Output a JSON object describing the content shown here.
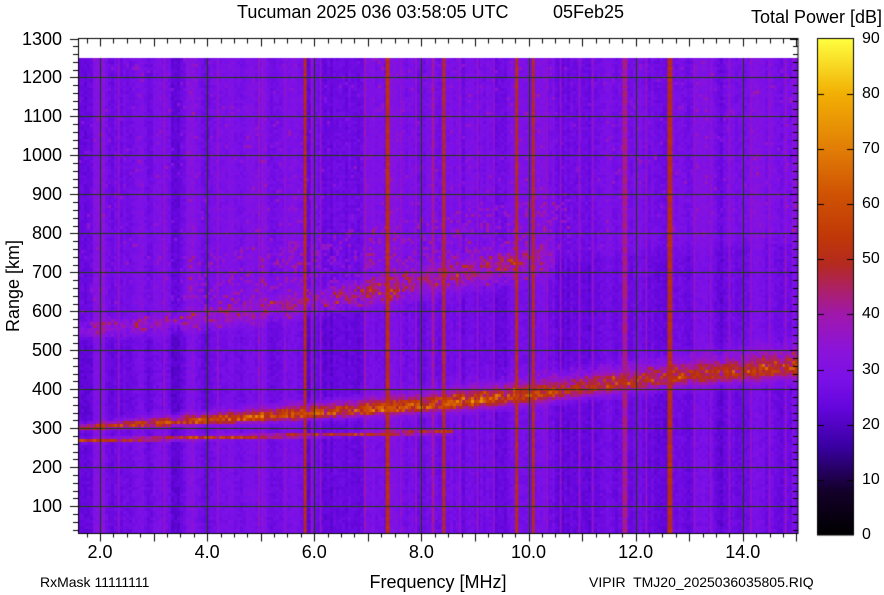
{
  "header": {
    "title": "Tucuman 2025 036 03:58:05 UTC",
    "date": "05Feb25",
    "colorbar_title": "Total Power [dB]"
  },
  "footer": {
    "rx_mask": "RxMask 11111111",
    "xlabel": "Frequency [MHz]",
    "file_id": "VIPIR  TMJ20_2025036035805.RIQ"
  },
  "ylabel": "Range [km]",
  "colors": {
    "background": "#ffffff",
    "text": "#000000",
    "grid": "#1e3c0a",
    "frame": "#000000"
  },
  "chart_data": {
    "type": "heatmap",
    "title": "Tucuman 2025 036 03:58:05 UTC  05Feb25",
    "xlabel": "Frequency [MHz]",
    "ylabel": "Range [km]",
    "zlabel": "Total Power [dB]",
    "x_range": [
      1.59,
      15.03
    ],
    "y_range": [
      30,
      1300
    ],
    "z_range": [
      0,
      90
    ],
    "data_top_km": 1250,
    "grid": true,
    "x_ticks": [
      {
        "value": 2,
        "label": "2.0"
      },
      {
        "value": 4,
        "label": "4.0"
      },
      {
        "value": 6,
        "label": "6.0"
      },
      {
        "value": 8,
        "label": "8.0"
      },
      {
        "value": 10,
        "label": "10.0"
      },
      {
        "value": 12,
        "label": "12.0"
      },
      {
        "value": 14,
        "label": "14.0"
      }
    ],
    "y_ticks": [
      {
        "value": 100,
        "label": "100"
      },
      {
        "value": 200,
        "label": "200"
      },
      {
        "value": 300,
        "label": "300"
      },
      {
        "value": 400,
        "label": "400"
      },
      {
        "value": 500,
        "label": "500"
      },
      {
        "value": 600,
        "label": "600"
      },
      {
        "value": 700,
        "label": "700"
      },
      {
        "value": 800,
        "label": "800"
      },
      {
        "value": 900,
        "label": "900"
      },
      {
        "value": 1000,
        "label": "1000"
      },
      {
        "value": 1100,
        "label": "1100"
      },
      {
        "value": 1200,
        "label": "1200"
      },
      {
        "value": 1300,
        "label": "1300"
      }
    ],
    "z_ticks": [
      {
        "value": 0,
        "label": "0"
      },
      {
        "value": 10,
        "label": "10"
      },
      {
        "value": 20,
        "label": "20"
      },
      {
        "value": 30,
        "label": "30"
      },
      {
        "value": 40,
        "label": "40"
      },
      {
        "value": 50,
        "label": "50"
      },
      {
        "value": 60,
        "label": "60"
      },
      {
        "value": 70,
        "label": "70"
      },
      {
        "value": 80,
        "label": "80"
      },
      {
        "value": 90,
        "label": "90"
      }
    ],
    "x_minor_step_mhz": 0.25,
    "y_minor_step_km": 20,
    "background_db": 27,
    "palette": [
      [
        0,
        "#000000"
      ],
      [
        8,
        "#14002a"
      ],
      [
        16,
        "#3a00a2"
      ],
      [
        23,
        "#6406dc"
      ],
      [
        28,
        "#7a10e8"
      ],
      [
        34,
        "#8d14d8"
      ],
      [
        40,
        "#a018ac"
      ],
      [
        45,
        "#ae2260"
      ],
      [
        49,
        "#b42a20"
      ],
      [
        54,
        "#c03808"
      ],
      [
        62,
        "#d05404"
      ],
      [
        70,
        "#e27e06"
      ],
      [
        80,
        "#f2b004"
      ],
      [
        90,
        "#ffff40"
      ]
    ],
    "echo_traces": {
      "f_region_main": {
        "points": [
          [
            1.59,
            299
          ],
          [
            3,
            310
          ],
          [
            5,
            327
          ],
          [
            7,
            345
          ],
          [
            8,
            355
          ],
          [
            9,
            366
          ],
          [
            10,
            380
          ],
          [
            11,
            398
          ],
          [
            12,
            417
          ],
          [
            13,
            430
          ],
          [
            14,
            441
          ],
          [
            15.03,
            452
          ]
        ],
        "peak_db": [
          [
            1.59,
            49
          ],
          [
            2.4,
            55
          ],
          [
            3,
            58
          ],
          [
            5.5,
            61
          ],
          [
            9,
            61
          ],
          [
            9.8,
            56
          ],
          [
            11,
            53
          ],
          [
            13,
            52
          ],
          [
            15.03,
            52
          ]
        ],
        "half_width_km": [
          [
            1.59,
            8
          ],
          [
            8,
            22
          ],
          [
            15.03,
            33
          ]
        ]
      },
      "sharp_lower_echo": {
        "points": [
          [
            1.59,
            268
          ],
          [
            5,
            279
          ],
          [
            8.6,
            291
          ]
        ],
        "peak_db": 58,
        "sigma_km": 3.5
      },
      "second_hop": {
        "points": [
          [
            1.59,
            548
          ],
          [
            3,
            564
          ],
          [
            4.3,
            584
          ],
          [
            6,
            621
          ],
          [
            7.4,
            657
          ],
          [
            8.5,
            687
          ],
          [
            9.5,
            711
          ],
          [
            10.4,
            729
          ]
        ],
        "amp_db": [
          [
            1.59,
            7
          ],
          [
            5,
            9
          ],
          [
            6.5,
            13
          ],
          [
            9.5,
            13
          ],
          [
            10.4,
            5
          ]
        ],
        "sigma_km": [
          [
            1.59,
            13
          ],
          [
            10.4,
            26
          ]
        ]
      }
    },
    "rfi_lines": [
      {
        "f": 5.83,
        "db": 50,
        "w": 3
      },
      {
        "f": 7.37,
        "db": 51,
        "w": 4
      },
      {
        "f": 8.42,
        "db": 50,
        "w": 3
      },
      {
        "f": 9.78,
        "db": 50,
        "w": 3
      },
      {
        "f": 10.09,
        "db": 49,
        "w": 3
      },
      {
        "f": 12.64,
        "db": 50,
        "w": 5
      },
      {
        "f": 11.8,
        "db": 42,
        "w": 5
      },
      {
        "f": 8.22,
        "db": 40,
        "w": 3
      },
      {
        "f": 6.95,
        "db": 38,
        "w": 2
      },
      {
        "f": 2.35,
        "db": 34,
        "w": 2
      },
      {
        "f": 3.2,
        "db": 35,
        "w": 2
      },
      {
        "f": 4.2,
        "db": 35,
        "w": 2
      },
      {
        "f": 4.97,
        "db": 36,
        "w": 2
      },
      {
        "f": 5.45,
        "db": 34,
        "w": 2
      },
      {
        "f": 5.95,
        "db": 35,
        "w": 2
      },
      {
        "f": 6.12,
        "db": 34,
        "w": 2
      },
      {
        "f": 7.62,
        "db": 34,
        "w": 2
      },
      {
        "f": 7.9,
        "db": 35,
        "w": 2
      },
      {
        "f": 8.72,
        "db": 34,
        "w": 2
      },
      {
        "f": 9.05,
        "db": 35,
        "w": 2
      },
      {
        "f": 9.35,
        "db": 34,
        "w": 2
      },
      {
        "f": 10.35,
        "db": 35,
        "w": 2
      },
      {
        "f": 10.6,
        "db": 34,
        "w": 2
      },
      {
        "f": 10.95,
        "db": 35,
        "w": 2
      },
      {
        "f": 11.2,
        "db": 34,
        "w": 2
      },
      {
        "f": 12.2,
        "db": 35,
        "w": 2
      },
      {
        "f": 13.1,
        "db": 35,
        "w": 2
      },
      {
        "f": 13.4,
        "db": 34,
        "w": 2
      },
      {
        "f": 13.75,
        "db": 35,
        "w": 2
      },
      {
        "f": 14.15,
        "db": 35,
        "w": 2
      },
      {
        "f": 14.5,
        "db": 34,
        "w": 2
      },
      {
        "f": 14.8,
        "db": 35,
        "w": 2
      }
    ],
    "dark_bands": [
      {
        "f1": 1.59,
        "f2": 1.8,
        "db": -1.5
      },
      {
        "f1": 6.28,
        "f2": 6.62,
        "db": -2.0
      },
      {
        "f1": 10.35,
        "f2": 11.05,
        "db": -1.8
      },
      {
        "f1": 13.45,
        "f2": 13.65,
        "db": -1.5
      }
    ],
    "noise": {
      "column_stripe_db": 2.5,
      "pixel_db": 3.5
    }
  }
}
